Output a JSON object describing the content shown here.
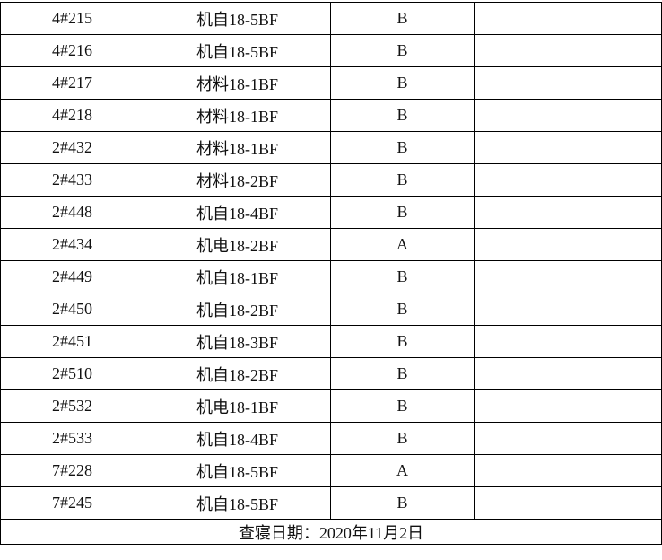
{
  "rows": [
    {
      "room": "4#215",
      "class": "机自18-5BF",
      "grade": "B",
      "note": ""
    },
    {
      "room": "4#216",
      "class": "机自18-5BF",
      "grade": "B",
      "note": ""
    },
    {
      "room": "4#217",
      "class": "材料18-1BF",
      "grade": "B",
      "note": ""
    },
    {
      "room": "4#218",
      "class": "材料18-1BF",
      "grade": "B",
      "note": ""
    },
    {
      "room": "2#432",
      "class": "材料18-1BF",
      "grade": "B",
      "note": ""
    },
    {
      "room": "2#433",
      "class": "材料18-2BF",
      "grade": "B",
      "note": ""
    },
    {
      "room": "2#448",
      "class": "机自18-4BF",
      "grade": "B",
      "note": ""
    },
    {
      "room": "2#434",
      "class": "机电18-2BF",
      "grade": "A",
      "note": ""
    },
    {
      "room": "2#449",
      "class": "机自18-1BF",
      "grade": "B",
      "note": ""
    },
    {
      "room": "2#450",
      "class": "机自18-2BF",
      "grade": "B",
      "note": ""
    },
    {
      "room": "2#451",
      "class": "机自18-3BF",
      "grade": "B",
      "note": ""
    },
    {
      "room": "2#510",
      "class": "机自18-2BF",
      "grade": "B",
      "note": ""
    },
    {
      "room": "2#532",
      "class": "机电18-1BF",
      "grade": "B",
      "note": ""
    },
    {
      "room": "2#533",
      "class": "机自18-4BF",
      "grade": "B",
      "note": ""
    },
    {
      "room": "7#228",
      "class": "机自18-5BF",
      "grade": "A",
      "note": ""
    },
    {
      "room": "7#245",
      "class": "机自18-5BF",
      "grade": "B",
      "note": ""
    }
  ],
  "footer": "查寝日期：2020年11月2日"
}
